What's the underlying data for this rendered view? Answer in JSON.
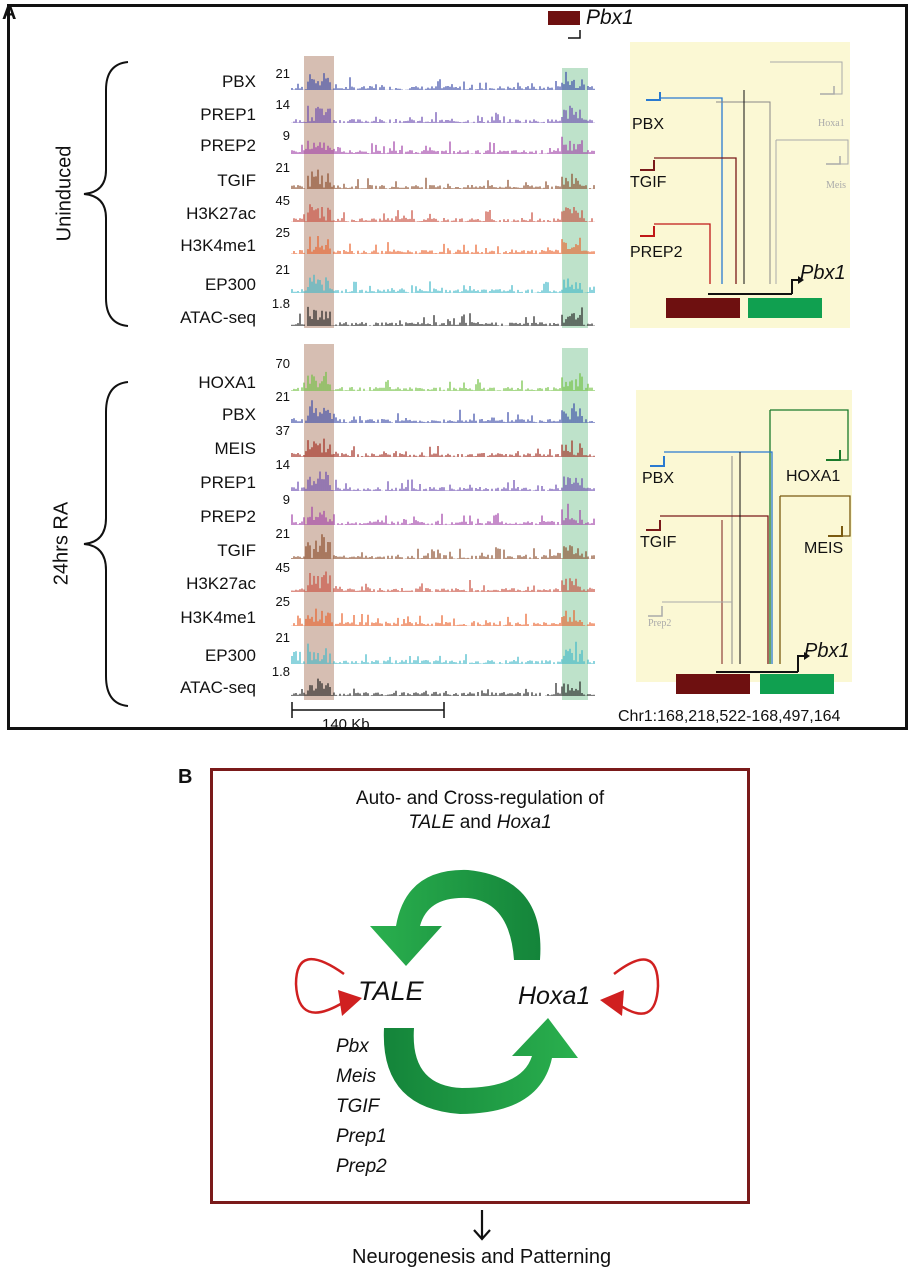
{
  "panel_a": {
    "letter": "A",
    "gene_label": "Pbx1",
    "groups": [
      {
        "condition": "Uninduced",
        "tracks": [
          {
            "name": "PBX",
            "scale": "21",
            "color": "#3a4aa8"
          },
          {
            "name": "PREP1",
            "scale": "14",
            "color": "#6a4ab0"
          },
          {
            "name": "PREP2",
            "scale": "9",
            "color": "#a040a8"
          },
          {
            "name": "TGIF",
            "scale": "21",
            "color": "#8a4a28"
          },
          {
            "name": "H3K27ac",
            "scale": "45",
            "color": "#c84a3a"
          },
          {
            "name": "H3K4me1",
            "scale": "25",
            "color": "#e8602a"
          },
          {
            "name": "EP300",
            "scale": "21",
            "color": "#40b8c8"
          },
          {
            "name": "ATAC-seq",
            "scale": "1.8",
            "color": "#222222"
          }
        ]
      },
      {
        "condition": "24hrs RA",
        "tracks": [
          {
            "name": "HOXA1",
            "scale": "70",
            "color": "#70c040"
          },
          {
            "name": "PBX",
            "scale": "21",
            "color": "#3a4aa8"
          },
          {
            "name": "MEIS",
            "scale": "37",
            "color": "#a0281c"
          },
          {
            "name": "PREP1",
            "scale": "14",
            "color": "#6a4ab0"
          },
          {
            "name": "PREP2",
            "scale": "9",
            "color": "#a040a8"
          },
          {
            "name": "TGIF",
            "scale": "21",
            "color": "#8a4a28"
          },
          {
            "name": "H3K27ac",
            "scale": "45",
            "color": "#c84a3a"
          },
          {
            "name": "H3K4me1",
            "scale": "25",
            "color": "#e8602a"
          },
          {
            "name": "EP300",
            "scale": "21",
            "color": "#40b8c8"
          },
          {
            "name": "ATAC-seq",
            "scale": "1.8",
            "color": "#222222"
          }
        ]
      }
    ],
    "scale_bar": "140 Kb",
    "coordinates": "Chr1:168,218,522-168,497,164",
    "diagram_top": {
      "labels": {
        "pbx": "PBX",
        "tgif": "TGIF",
        "prep2": "PREP2",
        "hoxa1": "Hoxa1",
        "meis": "Meis",
        "gene": "Pbx1"
      }
    },
    "diagram_bottom": {
      "labels": {
        "pbx": "PBX",
        "tgif": "TGIF",
        "prep2": "Prep2",
        "hoxa1": "HOXA1",
        "meis": "MEIS",
        "gene": "Pbx1"
      }
    },
    "colors": {
      "enhancer_dark": "#6e1010",
      "enhancer_green": "#10a050",
      "highlight_brown": "#c8a898",
      "highlight_green": "#a8d8b8",
      "diagram_bg": "#fbf8d4"
    }
  },
  "panel_b": {
    "letter": "B",
    "title_line1": "Auto- and Cross-regulation of",
    "title_line2_a": "TALE",
    "title_line2_b": " and ",
    "title_line2_c": "Hoxa1",
    "node_left": "TALE",
    "node_right": "Hoxa1",
    "tale_members": [
      "Pbx",
      "Meis",
      "TGIF",
      "Prep1",
      "Prep2"
    ],
    "outcome": "Neurogenesis and Patterning",
    "colors": {
      "frame": "#7a1a1a",
      "arrow_green": "#2aa84a",
      "arrow_dark_green": "#128038",
      "self_arrow": "#d02020"
    }
  }
}
